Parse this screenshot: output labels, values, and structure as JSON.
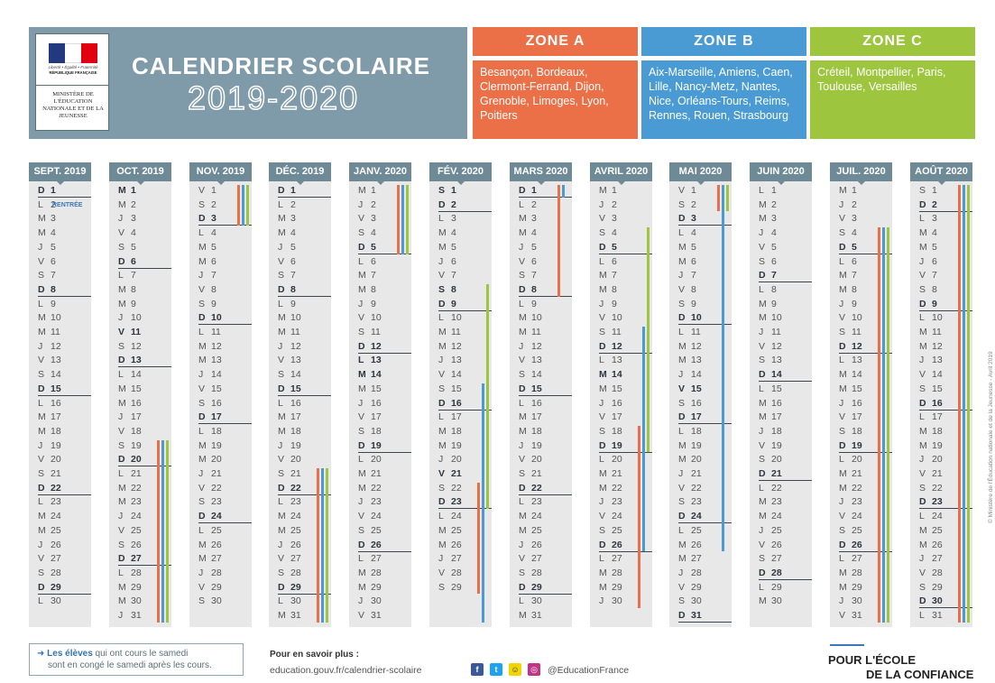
{
  "header": {
    "motto": "Liberté • Égalité • Fraternité",
    "republic": "RÉPUBLIQUE FRANÇAISE",
    "ministry": "MINISTÈRE DE L'ÉDUCATION NATIONALE ET DE LA JEUNESSE",
    "title": "CALENDRIER SCOLAIRE",
    "year": "2019-2020"
  },
  "colors": {
    "zone_a": "#ec7047",
    "zone_b": "#4a9bd4",
    "zone_c": "#9dc53e",
    "header_bg": "#7f9aa8",
    "month_head": "#6f8a97"
  },
  "zones": [
    {
      "id": "a",
      "name": "ZONE A",
      "cities": "Besançon, Bordeaux, Clermont-Ferrand, Dijon, Grenoble, Limoges, Lyon, Poitiers"
    },
    {
      "id": "b",
      "name": "ZONE B",
      "cities": "Aix-Marseille, Amiens, Caen, Lille, Nancy-Metz, Nantes, Nice, Orléans-Tours, Reims, Rennes, Rouen, Strasbourg"
    },
    {
      "id": "c",
      "name": "ZONE C",
      "cities": "Créteil, Montpellier, Paris, Toulouse, Versailles"
    }
  ],
  "rentree_label": "RENTRÉE",
  "months": [
    {
      "label": "SEPT. 2019",
      "start_weekday": 0,
      "days": 30
    },
    {
      "label": "OCT. 2019",
      "start_weekday": 2,
      "days": 31
    },
    {
      "label": "NOV. 2019",
      "start_weekday": 5,
      "days": 30
    },
    {
      "label": "DÉC. 2019",
      "start_weekday": 0,
      "days": 31
    },
    {
      "label": "JANV. 2020",
      "start_weekday": 3,
      "days": 31
    },
    {
      "label": "FÉV. 2020",
      "start_weekday": 6,
      "days": 29
    },
    {
      "label": "MARS 2020",
      "start_weekday": 0,
      "days": 31
    },
    {
      "label": "AVRIL 2020",
      "start_weekday": 3,
      "days": 30
    },
    {
      "label": "MAI 2020",
      "start_weekday": 5,
      "days": 31
    },
    {
      "label": "JUIN 2020",
      "start_weekday": 1,
      "days": 30
    },
    {
      "label": "JUIL. 2020",
      "start_weekday": 3,
      "days": 31
    },
    {
      "label": "AOÛT 2020",
      "start_weekday": 6,
      "days": 31
    }
  ],
  "weekday_letters": [
    "D",
    "L",
    "M",
    "M",
    "J",
    "V",
    "S"
  ],
  "holidays_bold": [
    {
      "month": 1,
      "day": 1
    },
    {
      "month": 1,
      "day": 11
    },
    {
      "month": 3,
      "day": 1
    },
    {
      "month": 4,
      "day": 13
    },
    {
      "month": 4,
      "day": 14
    },
    {
      "month": 5,
      "day": 1
    },
    {
      "month": 5,
      "day": 8
    },
    {
      "month": 5,
      "day": 21
    },
    {
      "month": 6,
      "day": 1
    },
    {
      "month": 7,
      "day": 14
    },
    {
      "month": 8,
      "day": 15
    }
  ],
  "vacations": [
    {
      "zone": "a",
      "month": 1,
      "from": 19,
      "to": 31
    },
    {
      "zone": "b",
      "month": 1,
      "from": 19,
      "to": 31
    },
    {
      "zone": "c",
      "month": 1,
      "from": 19,
      "to": 31
    },
    {
      "zone": "a",
      "month": 2,
      "from": 1,
      "to": 3
    },
    {
      "zone": "b",
      "month": 2,
      "from": 1,
      "to": 3
    },
    {
      "zone": "c",
      "month": 2,
      "from": 1,
      "to": 3
    },
    {
      "zone": "a",
      "month": 3,
      "from": 21,
      "to": 31
    },
    {
      "zone": "b",
      "month": 3,
      "from": 21,
      "to": 31
    },
    {
      "zone": "c",
      "month": 3,
      "from": 21,
      "to": 31
    },
    {
      "zone": "a",
      "month": 4,
      "from": 1,
      "to": 5
    },
    {
      "zone": "b",
      "month": 4,
      "from": 1,
      "to": 5
    },
    {
      "zone": "c",
      "month": 4,
      "from": 1,
      "to": 5
    },
    {
      "zone": "c",
      "month": 5,
      "from": 8,
      "to": 23
    },
    {
      "zone": "b",
      "month": 5,
      "from": 15,
      "to": 31
    },
    {
      "zone": "a",
      "month": 5,
      "from": 22,
      "to": 29
    },
    {
      "zone": "a",
      "month": 6,
      "from": 1,
      "to": 8
    },
    {
      "zone": "b",
      "month": 6,
      "from": 1,
      "to": 1
    },
    {
      "zone": "c",
      "month": 7,
      "from": 4,
      "to": 19
    },
    {
      "zone": "b",
      "month": 7,
      "from": 11,
      "to": 26
    },
    {
      "zone": "a",
      "month": 7,
      "from": 18,
      "to": 30
    },
    {
      "zone": "a",
      "month": 8,
      "from": 1,
      "to": 2
    },
    {
      "zone": "b",
      "month": 8,
      "from": 1,
      "to": 26
    },
    {
      "zone": "c",
      "month": 8,
      "from": 1,
      "to": 2
    },
    {
      "zone": "a",
      "month": 10,
      "from": 4,
      "to": 31
    },
    {
      "zone": "b",
      "month": 10,
      "from": 4,
      "to": 31
    },
    {
      "zone": "c",
      "month": 10,
      "from": 4,
      "to": 31
    },
    {
      "zone": "a",
      "month": 11,
      "from": 1,
      "to": 31
    },
    {
      "zone": "b",
      "month": 11,
      "from": 1,
      "to": 31
    },
    {
      "zone": "c",
      "month": 11,
      "from": 1,
      "to": 31
    }
  ],
  "footer": {
    "note_highlight": "Les élèves",
    "note_rest_1": " qui ont cours le samedi",
    "note_rest_2": "sont en congé le samedi après les cours.",
    "more_title": "Pour en savoir plus :",
    "more_url": "education.gouv.fr/calendrier-scolaire",
    "social_handle": "@EducationFrance",
    "slogan_line1": "POUR L'ÉCOLE",
    "slogan_line2": "DE LA CONFIANCE",
    "credit": "© Ministère de l'Éducation nationale et de la Jeunesse - Avril 2019"
  }
}
